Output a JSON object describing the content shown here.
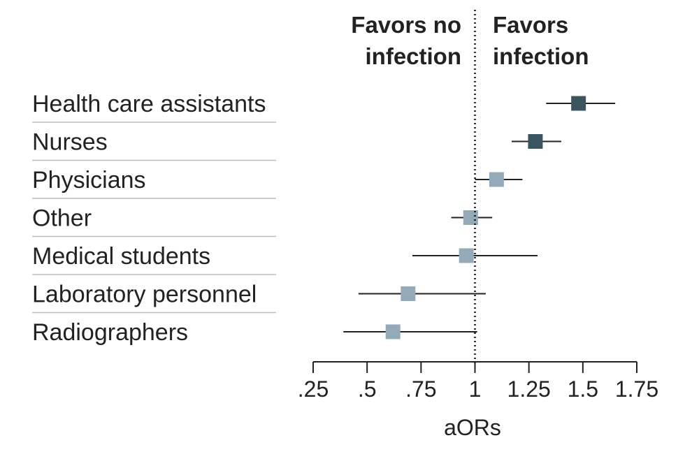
{
  "chart_data": {
    "type": "forest",
    "annotations": {
      "left": [
        "Favors no",
        "infection"
      ],
      "right": [
        "Favors",
        "infection"
      ]
    },
    "xlabel": "aORs",
    "reference_line": 1,
    "xlim": [
      0.25,
      1.75
    ],
    "ticks": [
      {
        "value": 0.25,
        "label": ".25"
      },
      {
        "value": 0.5,
        "label": ".5"
      },
      {
        "value": 0.75,
        "label": ".75"
      },
      {
        "value": 1,
        "label": "1"
      },
      {
        "value": 1.25,
        "label": "1.25"
      },
      {
        "value": 1.5,
        "label": "1.5"
      },
      {
        "value": 1.75,
        "label": "1.75"
      }
    ],
    "rows": [
      {
        "label": "Health care assistants",
        "estimate": 1.48,
        "lower": 1.33,
        "upper": 1.65,
        "color": "#3a5560"
      },
      {
        "label": "Nurses",
        "estimate": 1.28,
        "lower": 1.17,
        "upper": 1.4,
        "color": "#3a5560"
      },
      {
        "label": "Physicians",
        "estimate": 1.1,
        "lower": 1.0,
        "upper": 1.22,
        "color": "#94aab8"
      },
      {
        "label": "Other",
        "estimate": 0.98,
        "lower": 0.89,
        "upper": 1.08,
        "color": "#94aab8"
      },
      {
        "label": "Medical students",
        "estimate": 0.96,
        "lower": 0.71,
        "upper": 1.29,
        "color": "#94aab8"
      },
      {
        "label": "Laboratory personnel",
        "estimate": 0.69,
        "lower": 0.46,
        "upper": 1.05,
        "color": "#94aab8"
      },
      {
        "label": "Radiographers",
        "estimate": 0.62,
        "lower": 0.39,
        "upper": 1.01,
        "color": "#94aab8"
      }
    ]
  }
}
